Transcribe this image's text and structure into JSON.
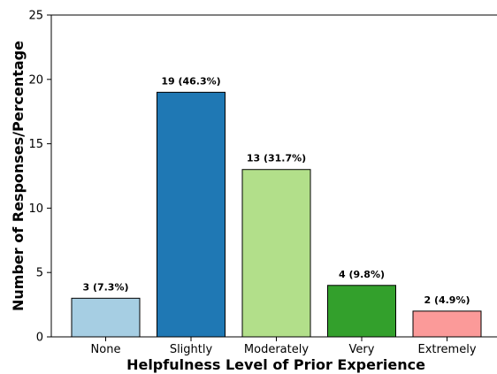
{
  "chart_data": {
    "type": "bar",
    "categories": [
      "None",
      "Slightly",
      "Moderately",
      "Very",
      "Extremely"
    ],
    "values": [
      3,
      19,
      13,
      4,
      2
    ],
    "data_labels": [
      "3 (7.3%)",
      "19 (46.3%)",
      "13 (31.7%)",
      "4 (9.8%)",
      "2 (4.9%)"
    ],
    "colors": [
      "#a6cee3",
      "#1f78b4",
      "#b2df8a",
      "#33a02c",
      "#fb9a99"
    ],
    "title": "",
    "xlabel": "Helpfulness Level of Prior Experience",
    "ylabel": "Number of Responses/Percentage",
    "ylim": [
      0,
      25
    ],
    "yticks": [
      0,
      5,
      10,
      15,
      20,
      25
    ],
    "grid": false,
    "legend": "none"
  }
}
